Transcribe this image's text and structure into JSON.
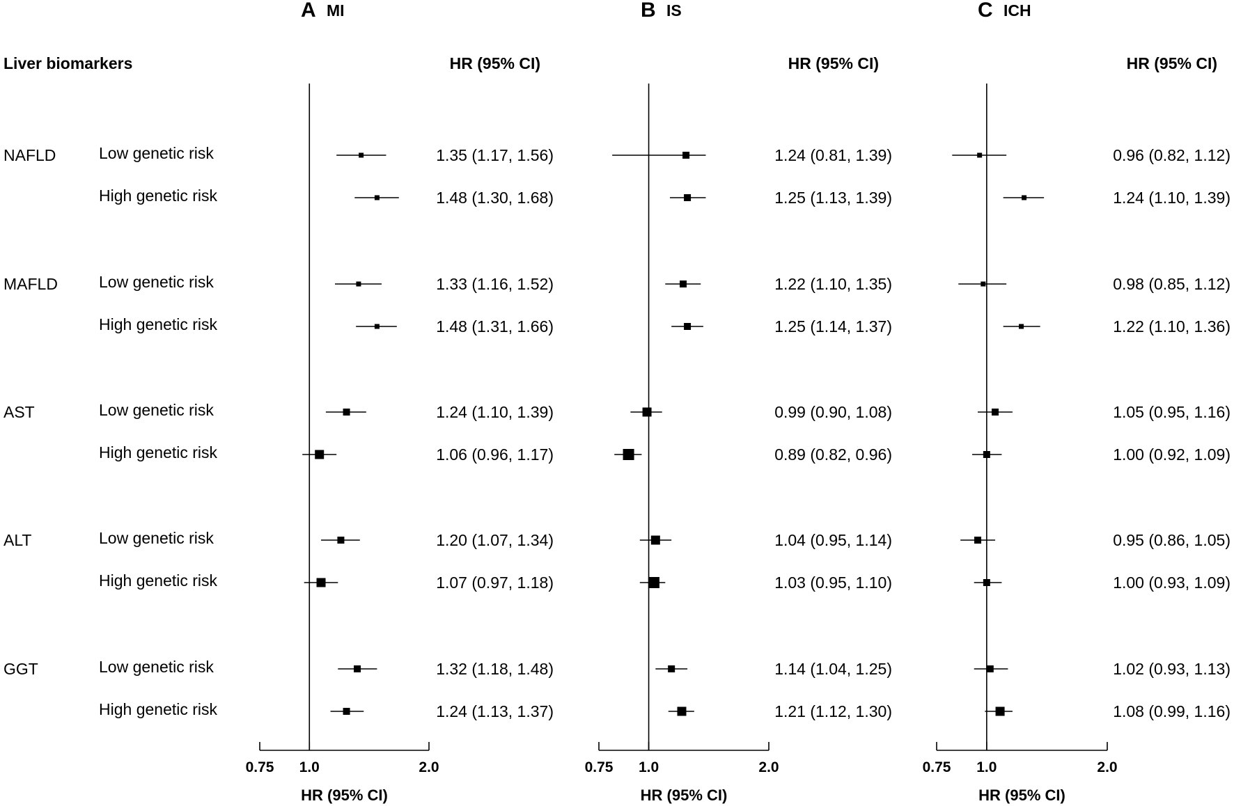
{
  "row_header": "Liver biomarkers",
  "chart_data": [
    {
      "type": "forest",
      "panel_letter": "A",
      "panel_title": "MI",
      "column_header": "HR (95% CI)",
      "xlabel": "HR (95% CI)",
      "xlim": [
        0.75,
        2.0
      ],
      "x_scale": "log",
      "reference_line": 1.0,
      "ticks": [
        "0.75",
        "1.0",
        "2.0"
      ],
      "rows": [
        {
          "biomarker": "NAFLD",
          "group": "Low genetic risk",
          "hr": 1.35,
          "lo": 1.17,
          "hi": 1.56,
          "label": "1.35 (1.17, 1.56)",
          "weight": 1
        },
        {
          "biomarker": "",
          "group": "High genetic risk",
          "hr": 1.48,
          "lo": 1.3,
          "hi": 1.68,
          "label": "1.48 (1.30, 1.68)",
          "weight": 1
        },
        {
          "biomarker": "MAFLD",
          "group": "Low genetic risk",
          "hr": 1.33,
          "lo": 1.16,
          "hi": 1.52,
          "label": "1.33 (1.16, 1.52)",
          "weight": 1
        },
        {
          "biomarker": "",
          "group": "High genetic risk",
          "hr": 1.48,
          "lo": 1.31,
          "hi": 1.66,
          "label": "1.48 (1.31, 1.66)",
          "weight": 1
        },
        {
          "biomarker": "AST",
          "group": "Low genetic risk",
          "hr": 1.24,
          "lo": 1.1,
          "hi": 1.39,
          "label": "1.24 (1.10, 1.39)",
          "weight": 2
        },
        {
          "biomarker": "",
          "group": "High genetic risk",
          "hr": 1.06,
          "lo": 0.96,
          "hi": 1.17,
          "label": "1.06 (0.96, 1.17)",
          "weight": 3
        },
        {
          "biomarker": "ALT",
          "group": "Low genetic risk",
          "hr": 1.2,
          "lo": 1.07,
          "hi": 1.34,
          "label": "1.20 (1.07, 1.34)",
          "weight": 2
        },
        {
          "biomarker": "",
          "group": "High genetic risk",
          "hr": 1.07,
          "lo": 0.97,
          "hi": 1.18,
          "label": "1.07 (0.97, 1.18)",
          "weight": 3
        },
        {
          "biomarker": "GGT",
          "group": "Low genetic risk",
          "hr": 1.32,
          "lo": 1.18,
          "hi": 1.48,
          "label": "1.32 (1.18, 1.48)",
          "weight": 2
        },
        {
          "biomarker": "",
          "group": "High genetic risk",
          "hr": 1.24,
          "lo": 1.13,
          "hi": 1.37,
          "label": "1.24 (1.13, 1.37)",
          "weight": 2
        }
      ]
    },
    {
      "type": "forest",
      "panel_letter": "B",
      "panel_title": "IS",
      "column_header": "HR (95% CI)",
      "xlabel": "HR (95% CI)",
      "xlim": [
        0.75,
        2.0
      ],
      "x_scale": "log",
      "reference_line": 1.0,
      "ticks": [
        "0.75",
        "1.0",
        "2.0"
      ],
      "rows": [
        {
          "biomarker": "",
          "group": "",
          "hr": 1.24,
          "lo": 0.81,
          "hi": 1.39,
          "label": "1.24 (0.81, 1.39)",
          "weight": 2
        },
        {
          "biomarker": "",
          "group": "",
          "hr": 1.25,
          "lo": 1.13,
          "hi": 1.39,
          "label": "1.25 (1.13, 1.39)",
          "weight": 2
        },
        {
          "biomarker": "",
          "group": "",
          "hr": 1.22,
          "lo": 1.1,
          "hi": 1.35,
          "label": "1.22 (1.10, 1.35)",
          "weight": 2
        },
        {
          "biomarker": "",
          "group": "",
          "hr": 1.25,
          "lo": 1.14,
          "hi": 1.37,
          "label": "1.25 (1.14, 1.37)",
          "weight": 2
        },
        {
          "biomarker": "",
          "group": "",
          "hr": 0.99,
          "lo": 0.9,
          "hi": 1.08,
          "label": "0.99 (0.90, 1.08)",
          "weight": 3
        },
        {
          "biomarker": "",
          "group": "",
          "hr": 0.89,
          "lo": 0.82,
          "hi": 0.96,
          "label": "0.89 (0.82, 0.96)",
          "weight": 4
        },
        {
          "biomarker": "",
          "group": "",
          "hr": 1.04,
          "lo": 0.95,
          "hi": 1.14,
          "label": "1.04 (0.95, 1.14)",
          "weight": 3
        },
        {
          "biomarker": "",
          "group": "",
          "hr": 1.03,
          "lo": 0.95,
          "hi": 1.1,
          "label": "1.03 (0.95, 1.10)",
          "weight": 4
        },
        {
          "biomarker": "",
          "group": "",
          "hr": 1.14,
          "lo": 1.04,
          "hi": 1.25,
          "label": "1.14 (1.04, 1.25)",
          "weight": 2
        },
        {
          "biomarker": "",
          "group": "",
          "hr": 1.21,
          "lo": 1.12,
          "hi": 1.3,
          "label": "1.21 (1.12, 1.30)",
          "weight": 3
        }
      ]
    },
    {
      "type": "forest",
      "panel_letter": "C",
      "panel_title": "ICH",
      "column_header": "HR (95% CI)",
      "xlabel": "HR (95% CI)",
      "xlim": [
        0.75,
        2.0
      ],
      "x_scale": "log",
      "reference_line": 1.0,
      "ticks": [
        "0.75",
        "1.0",
        "2.0"
      ],
      "rows": [
        {
          "biomarker": "",
          "group": "",
          "hr": 0.96,
          "lo": 0.82,
          "hi": 1.12,
          "label": "0.96 (0.82, 1.12)",
          "weight": 1
        },
        {
          "biomarker": "",
          "group": "",
          "hr": 1.24,
          "lo": 1.1,
          "hi": 1.39,
          "label": "1.24 (1.10, 1.39)",
          "weight": 1
        },
        {
          "biomarker": "",
          "group": "",
          "hr": 0.98,
          "lo": 0.85,
          "hi": 1.12,
          "label": "0.98 (0.85, 1.12)",
          "weight": 1
        },
        {
          "biomarker": "",
          "group": "",
          "hr": 1.22,
          "lo": 1.1,
          "hi": 1.36,
          "label": "1.22 (1.10, 1.36)",
          "weight": 1
        },
        {
          "biomarker": "",
          "group": "",
          "hr": 1.05,
          "lo": 0.95,
          "hi": 1.16,
          "label": "1.05 (0.95, 1.16)",
          "weight": 2
        },
        {
          "biomarker": "",
          "group": "",
          "hr": 1.0,
          "lo": 0.92,
          "hi": 1.09,
          "label": "1.00 (0.92, 1.09)",
          "weight": 2
        },
        {
          "biomarker": "",
          "group": "",
          "hr": 0.95,
          "lo": 0.86,
          "hi": 1.05,
          "label": "0.95 (0.86, 1.05)",
          "weight": 2
        },
        {
          "biomarker": "",
          "group": "",
          "hr": 1.0,
          "lo": 0.93,
          "hi": 1.09,
          "label": "1.00 (0.93, 1.09)",
          "weight": 2
        },
        {
          "biomarker": "",
          "group": "",
          "hr": 1.02,
          "lo": 0.93,
          "hi": 1.13,
          "label": "1.02 (0.93, 1.13)",
          "weight": 2
        },
        {
          "biomarker": "",
          "group": "",
          "hr": 1.08,
          "lo": 0.99,
          "hi": 1.16,
          "label": "1.08 (0.99, 1.16)",
          "weight": 3
        }
      ]
    }
  ]
}
